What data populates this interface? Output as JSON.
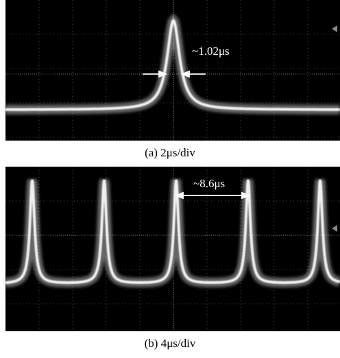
{
  "panels": [
    {
      "annotation": "~1.02μs",
      "caption": "(a) 2μs/div"
    },
    {
      "annotation": "~8.6μs",
      "caption": "(b) 4μs/div"
    }
  ]
}
